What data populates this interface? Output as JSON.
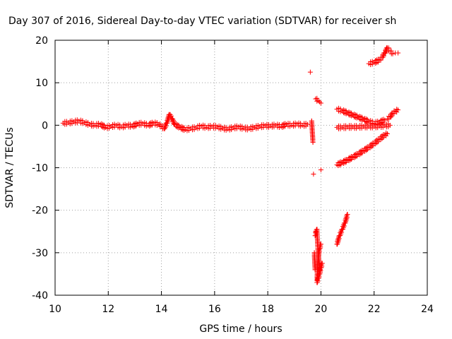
{
  "chart_data": {
    "type": "scatter",
    "title": "Day 307 of 2016, Sidereal Day-to-day VTEC variation (SDTVAR) for receiver sh",
    "xlabel": "GPS time / hours",
    "ylabel": "SDTVAR / TECUs",
    "xlim": [
      10,
      24
    ],
    "ylim": [
      -40,
      20
    ],
    "x_ticks": [
      "10",
      "12",
      "14",
      "16",
      "18",
      "20",
      "22",
      "24"
    ],
    "y_ticks": [
      "20",
      "10",
      "0",
      "-10",
      "-20",
      "-30",
      "-40"
    ],
    "grid": true,
    "marker": "plus",
    "marker_color": "#ff0000",
    "series": [
      {
        "x": [
          10.3,
          10.5,
          10.7,
          10.9,
          11.1,
          11.3,
          11.5,
          11.7,
          11.9,
          12.1,
          12.3,
          12.5,
          12.7,
          12.9,
          13.1,
          13.3,
          13.5,
          13.7,
          13.9,
          14.0,
          14.1,
          14.2,
          14.3,
          14.4,
          14.5,
          14.7,
          14.9,
          15.1,
          15.3,
          15.5,
          15.7,
          15.9,
          16.1,
          16.3,
          16.5,
          16.7,
          16.9,
          17.1,
          17.3,
          17.5,
          17.7,
          17.9,
          18.1,
          18.3,
          18.5,
          18.7,
          18.9,
          19.1,
          19.3,
          19.5
        ],
        "y": [
          0.5,
          0.6,
          0.8,
          1.0,
          0.6,
          0.2,
          0.0,
          0.2,
          -0.5,
          -0.3,
          0.0,
          -0.4,
          0.0,
          -0.2,
          0.3,
          0.4,
          0.0,
          0.5,
          0.2,
          -0.2,
          -0.8,
          0.5,
          2.5,
          1.5,
          0.2,
          -0.5,
          -1.0,
          -0.8,
          -0.6,
          -0.2,
          -0.5,
          -0.3,
          -0.4,
          -0.7,
          -0.9,
          -0.6,
          -0.4,
          -0.7,
          -0.8,
          -0.5,
          -0.3,
          -0.1,
          -0.2,
          0.0,
          -0.3,
          0.2,
          0.0,
          0.3,
          0.0,
          0.2
        ]
      },
      {
        "x": [
          19.6,
          19.65,
          19.7,
          19.72,
          19.75,
          19.78,
          19.8,
          19.85,
          19.9,
          19.95,
          20.0
        ],
        "y": [
          12.5,
          1.0,
          -4.0,
          -11.5,
          -30.0,
          -34.0,
          -25.0,
          -36.5,
          -30.0,
          -34.0,
          -10.5
        ]
      },
      {
        "x": [
          19.8,
          19.9,
          19.95,
          20.0
        ],
        "y": [
          6.2,
          5.8,
          5.5,
          5.2
        ]
      },
      {
        "x": [
          19.78,
          19.85,
          19.9,
          19.95,
          20.0
        ],
        "y": [
          -26.0,
          -24.5,
          -31.0,
          -29.0,
          -28.0
        ]
      },
      {
        "x": [
          19.85,
          19.9,
          19.95,
          20.0,
          20.05
        ],
        "y": [
          -37.0,
          -36.0,
          -35.0,
          -33.5,
          -32.5
        ]
      },
      {
        "x": [
          20.6,
          20.7,
          20.8,
          20.9,
          21.0
        ],
        "y": [
          -28.0,
          -26.0,
          -24.5,
          -23.0,
          -21.0
        ]
      },
      {
        "x": [
          20.6,
          20.8,
          21.0,
          21.2,
          21.4,
          21.6,
          21.8,
          22.0,
          22.2,
          22.4,
          22.5
        ],
        "y": [
          -9.3,
          -8.8,
          -8.2,
          -7.5,
          -6.8,
          -6.0,
          -5.2,
          -4.3,
          -3.3,
          -2.3,
          -2.0
        ]
      },
      {
        "x": [
          20.6,
          20.8,
          21.0,
          21.2,
          21.4,
          21.6,
          21.8,
          22.0,
          22.2,
          22.4,
          22.6
        ],
        "y": [
          -0.5,
          -0.5,
          -0.4,
          -0.4,
          -0.4,
          -0.3,
          -0.3,
          -0.3,
          -0.2,
          -0.1,
          0.0
        ]
      },
      {
        "x": [
          20.6,
          20.8,
          21.0,
          21.2,
          21.4,
          21.6,
          21.8,
          22.0,
          22.2,
          22.4
        ],
        "y": [
          3.8,
          3.4,
          2.9,
          2.4,
          1.9,
          1.4,
          0.9,
          0.5,
          0.7,
          1.2
        ]
      },
      {
        "x": [
          22.5,
          22.6,
          22.7,
          22.8,
          22.9
        ],
        "y": [
          1.5,
          2.0,
          2.8,
          3.3,
          3.6
        ]
      },
      {
        "x": [
          21.8,
          22.0,
          22.2,
          22.3,
          22.4,
          22.5,
          22.6,
          22.7,
          22.8,
          22.9
        ],
        "y": [
          14.5,
          14.8,
          15.3,
          16.0,
          17.0,
          18.2,
          17.5,
          16.8,
          17.0,
          17.0
        ]
      }
    ]
  }
}
